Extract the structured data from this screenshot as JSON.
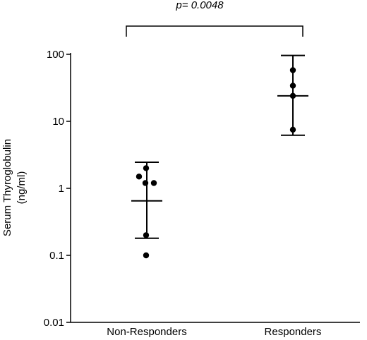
{
  "chart_data": {
    "type": "scatter",
    "y_scale": "log",
    "ylim": [
      0.01,
      100
    ],
    "y_ticks": [
      {
        "value": 0.01,
        "label": "0.01"
      },
      {
        "value": 0.1,
        "label": "0.1"
      },
      {
        "value": 1,
        "label": "1"
      },
      {
        "value": 10,
        "label": "10"
      },
      {
        "value": 100,
        "label": "100"
      }
    ],
    "ylabel_line1": "Serum Thyroglobulin",
    "ylabel_line2": "(ng/ml)",
    "categories": [
      "Non-Responders",
      "Responders"
    ],
    "groups": [
      {
        "category": "Non-Responders",
        "points": [
          2.0,
          1.5,
          1.2,
          1.2,
          0.2,
          0.1
        ],
        "center": 0.65,
        "upper": 2.45,
        "lower": 0.18
      },
      {
        "category": "Responders",
        "points": [
          58,
          34,
          24,
          7.5
        ],
        "center": 24,
        "upper": 96,
        "lower": 6.2
      }
    ],
    "significance": {
      "text": "p= 0.0048"
    },
    "grid": false,
    "legend": "none"
  }
}
